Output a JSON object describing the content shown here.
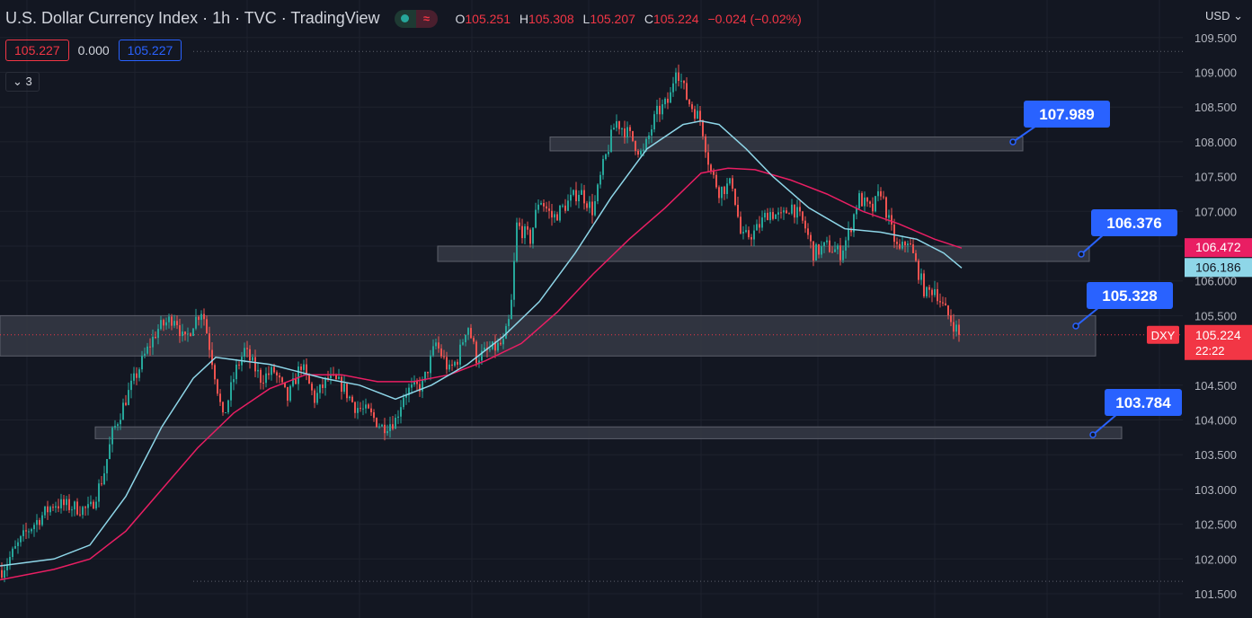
{
  "legend": {
    "title": "U.S. Dollar Currency Index · 1h · TVC · TradingView",
    "status_wave": "≈",
    "ohlc": {
      "o_label": "O",
      "o": "105.251",
      "h_label": "H",
      "h": "105.308",
      "l_label": "L",
      "l": "105.207",
      "c_label": "C",
      "c": "105.224",
      "change": "−0.024 (−0.02%)"
    },
    "input_1": "105.227",
    "input_2": "0.000",
    "input_3": "105.227",
    "collapse": "⌄ 3"
  },
  "currency": "USD ⌄",
  "chart_data": {
    "type": "candlestick",
    "symbol": "DXY",
    "interval": "1h",
    "y_ticks": [
      "109.500",
      "109.000",
      "108.500",
      "108.000",
      "107.500",
      "107.000",
      "106.500",
      "106.000",
      "105.500",
      "104.500",
      "104.000",
      "103.500",
      "103.000",
      "102.500",
      "102.000",
      "101.500"
    ],
    "ylim": [
      101.5,
      109.5
    ],
    "price_path": [
      [
        0,
        101.8
      ],
      [
        30,
        102.4
      ],
      [
        60,
        102.8
      ],
      [
        100,
        102.7
      ],
      [
        115,
        103.2
      ],
      [
        125,
        103.8
      ],
      [
        140,
        104.3
      ],
      [
        160,
        104.9
      ],
      [
        175,
        105.3
      ],
      [
        195,
        105.5
      ],
      [
        205,
        105.1
      ],
      [
        215,
        105.4
      ],
      [
        225,
        105.6
      ],
      [
        240,
        104.6
      ],
      [
        248,
        104.0
      ],
      [
        262,
        104.7
      ],
      [
        272,
        105.0
      ],
      [
        290,
        104.6
      ],
      [
        305,
        104.7
      ],
      [
        320,
        104.3
      ],
      [
        335,
        104.8
      ],
      [
        350,
        104.3
      ],
      [
        365,
        104.6
      ],
      [
        380,
        104.5
      ],
      [
        395,
        104.2
      ],
      [
        410,
        104.1
      ],
      [
        425,
        103.9
      ],
      [
        440,
        104.0
      ],
      [
        450,
        104.4
      ],
      [
        470,
        104.5
      ],
      [
        485,
        105.1
      ],
      [
        500,
        104.7
      ],
      [
        510,
        104.9
      ],
      [
        520,
        105.4
      ],
      [
        530,
        104.9
      ],
      [
        545,
        105.0
      ],
      [
        560,
        105.1
      ],
      [
        568,
        105.5
      ],
      [
        575,
        106.8
      ],
      [
        590,
        106.6
      ],
      [
        600,
        107.2
      ],
      [
        615,
        106.9
      ],
      [
        630,
        107.1
      ],
      [
        645,
        107.3
      ],
      [
        660,
        107.0
      ],
      [
        670,
        107.6
      ],
      [
        685,
        108.3
      ],
      [
        700,
        108.1
      ],
      [
        715,
        107.8
      ],
      [
        730,
        108.4
      ],
      [
        745,
        108.6
      ],
      [
        752,
        109.1
      ],
      [
        765,
        108.6
      ],
      [
        780,
        108.3
      ],
      [
        790,
        107.6
      ],
      [
        800,
        107.3
      ],
      [
        815,
        107.4
      ],
      [
        825,
        106.6
      ],
      [
        840,
        106.7
      ],
      [
        855,
        107.0
      ],
      [
        870,
        106.9
      ],
      [
        880,
        107.1
      ],
      [
        895,
        106.8
      ],
      [
        905,
        106.4
      ],
      [
        920,
        106.5
      ],
      [
        935,
        106.4
      ],
      [
        945,
        106.7
      ],
      [
        955,
        107.2
      ],
      [
        970,
        107.0
      ],
      [
        980,
        107.3
      ],
      [
        990,
        106.8
      ],
      [
        1000,
        106.4
      ],
      [
        1010,
        106.6
      ],
      [
        1020,
        106.2
      ],
      [
        1030,
        105.8
      ],
      [
        1040,
        105.9
      ],
      [
        1050,
        105.6
      ],
      [
        1060,
        105.4
      ],
      [
        1068,
        105.22
      ]
    ],
    "sma_fast": [
      [
        0,
        101.9
      ],
      [
        60,
        102.0
      ],
      [
        100,
        102.2
      ],
      [
        140,
        102.9
      ],
      [
        180,
        103.9
      ],
      [
        215,
        104.6
      ],
      [
        240,
        104.9
      ],
      [
        270,
        104.85
      ],
      [
        300,
        104.8
      ],
      [
        330,
        104.7
      ],
      [
        360,
        104.6
      ],
      [
        400,
        104.5
      ],
      [
        440,
        104.3
      ],
      [
        480,
        104.5
      ],
      [
        520,
        104.8
      ],
      [
        560,
        105.2
      ],
      [
        600,
        105.7
      ],
      [
        640,
        106.4
      ],
      [
        680,
        107.2
      ],
      [
        720,
        107.9
      ],
      [
        760,
        108.25
      ],
      [
        780,
        108.3
      ],
      [
        800,
        108.25
      ],
      [
        830,
        107.9
      ],
      [
        860,
        107.5
      ],
      [
        900,
        107.05
      ],
      [
        940,
        106.75
      ],
      [
        980,
        106.7
      ],
      [
        1020,
        106.6
      ],
      [
        1050,
        106.4
      ],
      [
        1070,
        106.186
      ]
    ],
    "sma_slow": [
      [
        0,
        101.7
      ],
      [
        60,
        101.85
      ],
      [
        100,
        102.0
      ],
      [
        140,
        102.4
      ],
      [
        180,
        103.0
      ],
      [
        220,
        103.6
      ],
      [
        260,
        104.1
      ],
      [
        300,
        104.45
      ],
      [
        340,
        104.65
      ],
      [
        380,
        104.65
      ],
      [
        420,
        104.55
      ],
      [
        460,
        104.55
      ],
      [
        500,
        104.65
      ],
      [
        540,
        104.85
      ],
      [
        580,
        105.1
      ],
      [
        620,
        105.55
      ],
      [
        660,
        106.1
      ],
      [
        700,
        106.6
      ],
      [
        740,
        107.05
      ],
      [
        780,
        107.55
      ],
      [
        810,
        107.62
      ],
      [
        840,
        107.6
      ],
      [
        880,
        107.45
      ],
      [
        920,
        107.25
      ],
      [
        960,
        107.0
      ],
      [
        1000,
        106.82
      ],
      [
        1040,
        106.6
      ],
      [
        1070,
        106.472
      ]
    ],
    "zones": [
      {
        "label": "107.989",
        "low": 107.87,
        "high": 108.07
      },
      {
        "label": "106.376",
        "low": 106.28,
        "high": 106.5
      },
      {
        "label": "105.328",
        "low": 104.92,
        "high": 105.5
      },
      {
        "label": "103.784",
        "low": 103.73,
        "high": 103.9
      }
    ],
    "dotted_lines": [
      109.3,
      101.68
    ],
    "current_price": 105.224,
    "price_label": "105.224",
    "countdown": "22:22",
    "sma_slow_label": "106.472",
    "sma_fast_label": "106.186",
    "symbol_tag": "DXY",
    "colors": {
      "background": "#131722",
      "grid": "#1e222d",
      "axis_text": "#b2b5be",
      "up": "#26a69a",
      "down": "#ef5350",
      "sma_fast": "#8ed6e8",
      "sma_slow": "#e91e63",
      "zone_fill": "#363a45",
      "zone_stroke": "#5d606b",
      "callout": "#2962ff",
      "price": "#f23645"
    }
  }
}
